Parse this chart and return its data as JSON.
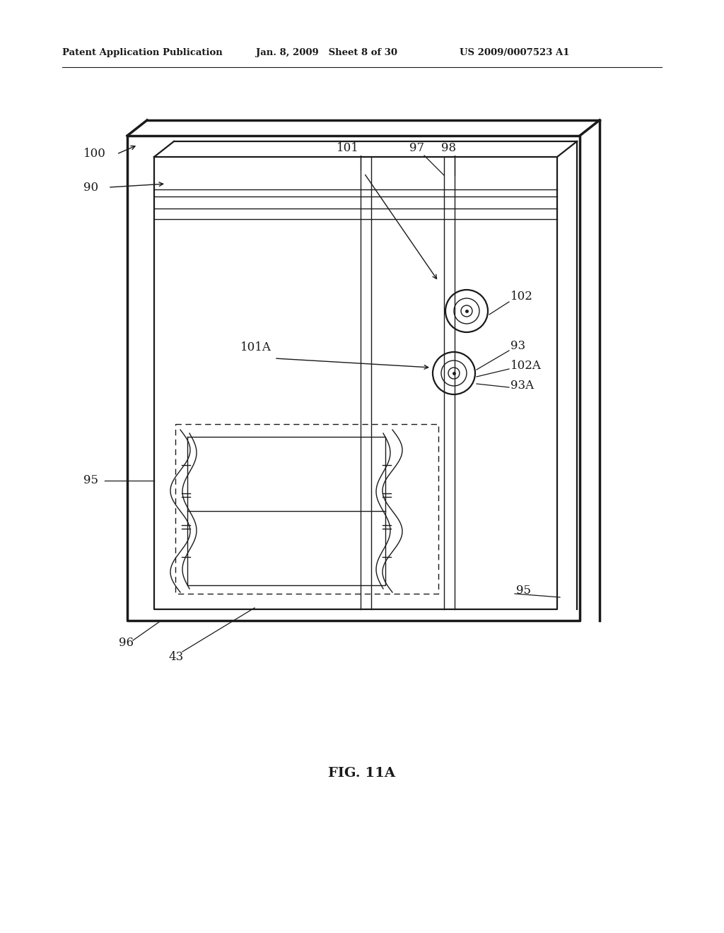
{
  "bg_color": "#ffffff",
  "fig_width": 10.24,
  "fig_height": 13.2,
  "header_left": "Patent Application Publication",
  "header_mid": "Jan. 8, 2009   Sheet 8 of 30",
  "header_right": "US 2009/0007523 A1",
  "figure_label": "FIG. 11A",
  "color": "#1a1a1a",
  "lw_thick": 2.5,
  "lw_med": 1.6,
  "lw_thin": 1.0
}
